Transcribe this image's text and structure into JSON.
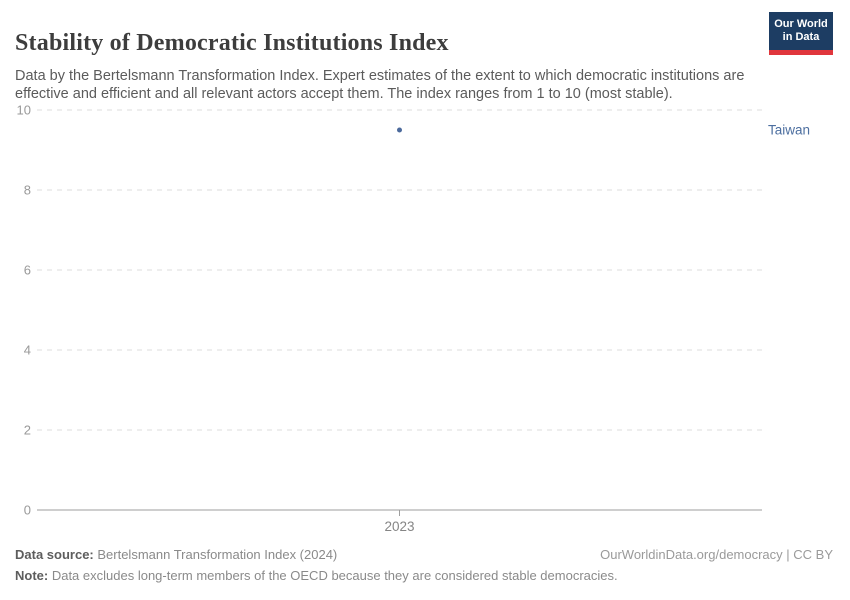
{
  "header": {
    "title": "Stability of Democratic Institutions Index",
    "subtitle": "Data by the Bertelsmann Transformation Index. Expert estimates of the extent to which democratic institutions are effective and efficient and all relevant actors accept them. The index ranges from 1 to 10 (most stable).",
    "logo_line1": "Our World",
    "logo_line2": "in Data"
  },
  "chart_data": {
    "type": "scatter",
    "title": "Stability of Democratic Institutions Index",
    "x": [
      2023
    ],
    "xtick_labels": [
      "2023"
    ],
    "series": [
      {
        "name": "Taiwan",
        "values": [
          9.5
        ],
        "color": "#4c6a9c"
      }
    ],
    "xlabel": "",
    "ylabel": "",
    "ylim": [
      0,
      10
    ],
    "yticks": [
      0,
      2,
      4,
      6,
      8,
      10
    ],
    "grid": "horizontal-dashed",
    "legend": "entity-label-right"
  },
  "footer": {
    "source_label": "Data source:",
    "source_value": " Bertelsmann Transformation Index (2024)",
    "note_label": "Note:",
    "note_value": " Data excludes long-term members of the OECD because they are considered stable democracies.",
    "attribution": "OurWorldinData.org/democracy | CC BY"
  },
  "colors": {
    "accent_point": "#4c6a9c",
    "entity_label": "#4d6fa0",
    "logo_navy": "#1d3d63",
    "logo_red": "#e0363c"
  }
}
